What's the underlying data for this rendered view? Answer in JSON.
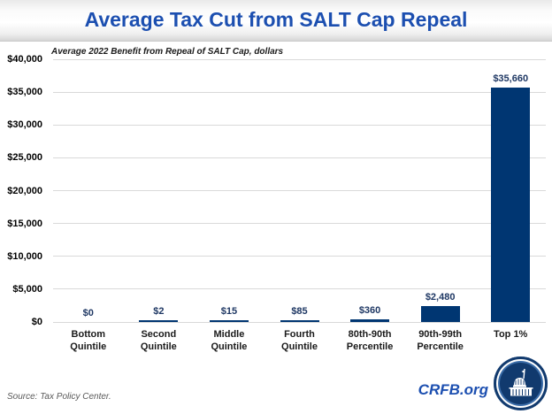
{
  "header": {
    "title": "Average Tax Cut from SALT Cap Repeal"
  },
  "chart_data": {
    "type": "bar",
    "title": "Average Tax Cut from SALT Cap Repeal",
    "subtitle": "Average 2022 Benefit from Repeal of SALT Cap, dollars",
    "categories": [
      "Bottom Quintile",
      "Second Quintile",
      "Middle Quintile",
      "Fourth Quintile",
      "80th-90th Percentile",
      "90th-99th Percentile",
      "Top 1%"
    ],
    "category_label_lines": [
      [
        "Bottom",
        "Quintile"
      ],
      [
        "Second",
        "Quintile"
      ],
      [
        "Middle",
        "Quintile"
      ],
      [
        "Fourth",
        "Quintile"
      ],
      [
        "80th-90th",
        "Percentile"
      ],
      [
        "90th-99th",
        "Percentile"
      ],
      [
        "Top 1%"
      ]
    ],
    "values": [
      0,
      2,
      15,
      85,
      360,
      2480,
      35660
    ],
    "value_labels": [
      "$0",
      "$2",
      "$15",
      "$85",
      "$360",
      "$2,480",
      "$35,660"
    ],
    "xlabel": "",
    "ylabel": "",
    "ylim": [
      0,
      40000
    ],
    "ytick_step": 5000,
    "ytick_labels": [
      "$0",
      "$5,000",
      "$10,000",
      "$15,000",
      "$20,000",
      "$25,000",
      "$30,000",
      "$35,000",
      "$40,000"
    ],
    "grid": true,
    "legend": "none",
    "bar_color": "#003672",
    "value_label_color": "#1f3864",
    "gridline_color": "#d9d9d9",
    "title_color": "#1c4fb0"
  },
  "footer": {
    "source": "Source: Tax Policy Center.",
    "brand": "CRFB.org"
  },
  "icons": {
    "logo": "capitol-building-icon"
  }
}
